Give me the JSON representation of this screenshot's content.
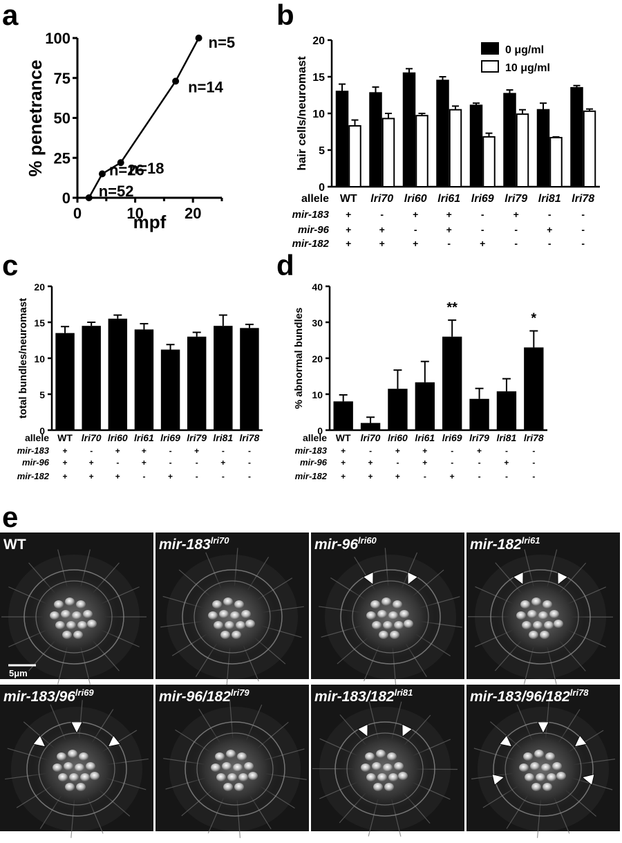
{
  "panels": {
    "a": "a",
    "b": "b",
    "c": "c",
    "d": "d",
    "e": "e"
  },
  "chart_data": [
    {
      "id": "a",
      "type": "line",
      "xlabel": "mpf",
      "ylabel": "% penetrance",
      "xlim": [
        0,
        25
      ],
      "ylim": [
        0,
        100
      ],
      "xticks": [
        "0",
        "10",
        "20"
      ],
      "yticks": [
        "0",
        "25",
        "50",
        "75",
        "100"
      ],
      "x": [
        2,
        4.3,
        7.5,
        17,
        21
      ],
      "y": [
        0,
        15,
        22,
        73,
        100
      ],
      "annotations": [
        "n=52",
        "n=26",
        "n=18",
        "n=14",
        "n=5"
      ]
    },
    {
      "id": "b",
      "type": "bar",
      "ylabel": "hair cells/neuromast",
      "ylim": [
        0,
        20
      ],
      "yticks": [
        "0",
        "5",
        "10",
        "15",
        "20"
      ],
      "categories": [
        "WT",
        "lri70",
        "lri60",
        "lri61",
        "lri69",
        "lri79",
        "lri81",
        "lri78"
      ],
      "series": [
        {
          "name": "0 μg/ml",
          "color": "#000000",
          "values": [
            13.0,
            12.8,
            15.5,
            14.5,
            11.1,
            12.7,
            10.5,
            13.5
          ],
          "errors": [
            1.0,
            0.8,
            0.6,
            0.5,
            0.3,
            0.5,
            0.9,
            0.3
          ]
        },
        {
          "name": "10 μg/ml",
          "color": "#ffffff",
          "values": [
            8.3,
            9.3,
            9.7,
            10.5,
            6.8,
            9.9,
            6.7,
            10.3
          ],
          "errors": [
            0.8,
            0.7,
            0.3,
            0.5,
            0.5,
            0.6,
            0.1,
            0.3
          ]
        }
      ],
      "genotype_header": "allele",
      "genotype_rows": [
        {
          "label": "mir-183",
          "values": [
            "+",
            "-",
            "+",
            "+",
            "-",
            "+",
            "-",
            "-"
          ]
        },
        {
          "label": "mir-96",
          "values": [
            "+",
            "+",
            "-",
            "+",
            "-",
            "-",
            "+",
            "-"
          ]
        },
        {
          "label": "mir-182",
          "values": [
            "+",
            "+",
            "+",
            "-",
            "+",
            "-",
            "-",
            "-"
          ]
        }
      ]
    },
    {
      "id": "c",
      "type": "bar",
      "ylabel": "total bundles/neuromast",
      "ylim": [
        0,
        20
      ],
      "yticks": [
        "0",
        "5",
        "10",
        "15",
        "20"
      ],
      "categories": [
        "WT",
        "lri70",
        "lri60",
        "lri61",
        "lri69",
        "lri79",
        "lri81",
        "lri78"
      ],
      "values": [
        13.5,
        14.5,
        15.5,
        14.0,
        11.2,
        13.0,
        14.5,
        14.2
      ],
      "errors": [
        0.9,
        0.5,
        0.5,
        0.8,
        0.7,
        0.6,
        1.5,
        0.5
      ],
      "genotype_header": "allele",
      "genotype_rows": [
        {
          "label": "mir-183",
          "values": [
            "+",
            "-",
            "+",
            "+",
            "-",
            "+",
            "-",
            "-"
          ]
        },
        {
          "label": "mir-96",
          "values": [
            "+",
            "+",
            "-",
            "+",
            "-",
            "-",
            "+",
            "-"
          ]
        },
        {
          "label": "mir-182",
          "values": [
            "+",
            "+",
            "+",
            "-",
            "+",
            "-",
            "-",
            "-"
          ]
        }
      ]
    },
    {
      "id": "d",
      "type": "bar",
      "ylabel": "% abnormal bundles",
      "ylim": [
        0,
        40
      ],
      "yticks": [
        "0",
        "10",
        "20",
        "30",
        "40"
      ],
      "categories": [
        "WT",
        "lri70",
        "lri60",
        "lri61",
        "lri69",
        "lri79",
        "lri81",
        "lri78"
      ],
      "values": [
        8.0,
        2.0,
        11.5,
        13.3,
        26.0,
        8.7,
        10.8,
        23.0
      ],
      "errors": [
        1.8,
        1.6,
        5.2,
        5.8,
        4.6,
        2.9,
        3.5,
        4.6
      ],
      "significance": [
        "",
        "",
        "",
        "",
        "**",
        "",
        "",
        "*"
      ],
      "genotype_header": "allele",
      "genotype_rows": [
        {
          "label": "mir-183",
          "values": [
            "+",
            "-",
            "+",
            "+",
            "-",
            "+",
            "-",
            "-"
          ]
        },
        {
          "label": "mir-96",
          "values": [
            "+",
            "+",
            "-",
            "+",
            "-",
            "-",
            "+",
            "-"
          ]
        },
        {
          "label": "mir-182",
          "values": [
            "+",
            "+",
            "+",
            "-",
            "+",
            "-",
            "-",
            "-"
          ]
        }
      ]
    }
  ],
  "micrographs": {
    "scale_bar": "5μm",
    "tiles": [
      {
        "gene": "WT",
        "allele": "",
        "arrowheads": 0
      },
      {
        "gene": "mir-183",
        "allele": "lri70",
        "arrowheads": 0
      },
      {
        "gene": "mir-96",
        "allele": "lri60",
        "arrowheads": 2
      },
      {
        "gene": "mir-182",
        "allele": "lri61",
        "arrowheads": 2
      },
      {
        "gene": "mir-183/96",
        "allele": "lri69",
        "arrowheads": 3
      },
      {
        "gene": "mir-96/182",
        "allele": "lri79",
        "arrowheads": 0
      },
      {
        "gene": "mir-183/182",
        "allele": "lri81",
        "arrowheads": 2
      },
      {
        "gene": "mir-183/96/182",
        "allele": "lri78",
        "arrowheads": 5
      }
    ]
  }
}
